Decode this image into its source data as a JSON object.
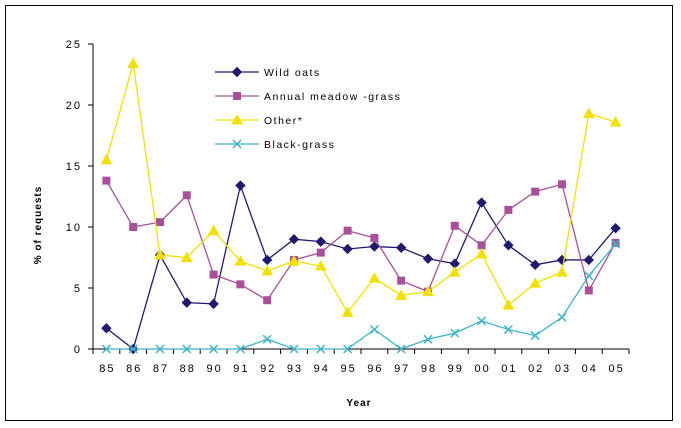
{
  "chart_data": {
    "type": "line",
    "title": "",
    "xlabel": "Year",
    "ylabel": "% of requests",
    "ylim": [
      0,
      25
    ],
    "yticks": [
      "0",
      "5",
      "10",
      "15",
      "20",
      "25"
    ],
    "categories": [
      "85",
      "86",
      "87",
      "88",
      "90",
      "91",
      "92",
      "93",
      "94",
      "95",
      "96",
      "97",
      "98",
      "99",
      "00",
      "01",
      "02",
      "03",
      "04",
      "05"
    ],
    "legend_position": "top-left",
    "grid": false,
    "series": [
      {
        "name": "Wild oats",
        "color": "#1f1a6e",
        "marker": "diamond",
        "values": [
          1.7,
          0.0,
          7.7,
          3.8,
          3.7,
          13.4,
          7.3,
          9.0,
          8.8,
          8.2,
          8.4,
          8.3,
          7.4,
          7.0,
          12.0,
          8.5,
          6.9,
          7.3,
          7.3,
          9.9
        ]
      },
      {
        "name": "Annual meadow -grass",
        "color": "#a8509a",
        "marker": "square",
        "values": [
          13.8,
          10.0,
          10.4,
          12.6,
          6.1,
          5.3,
          4.0,
          7.3,
          7.9,
          9.7,
          9.1,
          5.6,
          4.7,
          10.1,
          8.5,
          11.4,
          12.9,
          13.5,
          4.8,
          8.7
        ]
      },
      {
        "name": "Other*",
        "color": "#f2e100",
        "marker": "triangle",
        "values": [
          15.5,
          23.4,
          7.7,
          7.5,
          9.7,
          7.2,
          6.4,
          7.2,
          6.8,
          3.0,
          5.8,
          4.4,
          4.7,
          6.3,
          7.8,
          3.6,
          5.4,
          6.3,
          19.3,
          18.6
        ]
      },
      {
        "name": "Black-grass",
        "color": "#3fb4c8",
        "marker": "x",
        "values": [
          0.0,
          0.0,
          0.0,
          0.0,
          0.0,
          0.0,
          0.8,
          0.0,
          0.0,
          0.0,
          1.6,
          0.0,
          0.8,
          1.3,
          2.3,
          1.6,
          1.1,
          2.6,
          6.0,
          8.6
        ]
      }
    ]
  }
}
